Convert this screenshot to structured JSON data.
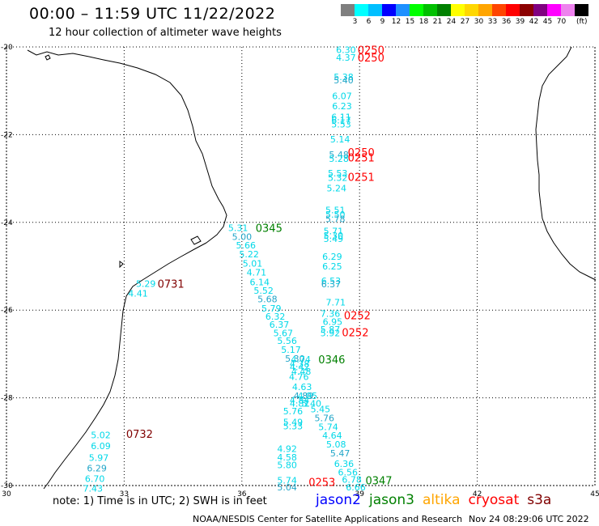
{
  "header": {
    "title": "00:00 – 11:59 UTC 11/22/2022",
    "subtitle": "12 hour collection of altimeter wave heights"
  },
  "legend": {
    "colors": [
      "#7f7f7f",
      "#00ffff",
      "#00bfff",
      "#0000ff",
      "#1e90ff",
      "#00ff00",
      "#00c000",
      "#008000",
      "#ffff00",
      "#ffd700",
      "#ffa500",
      "#ff4500",
      "#ff0000",
      "#8b0000",
      "#800080",
      "#ff00ff",
      "#ee82ee",
      "#000000"
    ],
    "labels": [
      "3",
      "6",
      "9",
      "12",
      "15",
      "18",
      "21",
      "24",
      "27",
      "30",
      "33",
      "36",
      "39",
      "42",
      "45",
      "70"
    ],
    "units": "(ft)"
  },
  "map": {
    "lon_range": [
      30,
      45
    ],
    "lat_range": [
      -30,
      -20
    ],
    "x_ticks": [
      "30",
      "33",
      "36",
      "39",
      "42",
      "45"
    ],
    "y_ticks": [
      "-20",
      "-22",
      "-24",
      "-26",
      "-28",
      "-30"
    ],
    "grid": "dotted",
    "swh_ft": [
      {
        "v": "6.30",
        "lon": 38.4,
        "lat": -20.06
      },
      {
        "v": "4.37",
        "lon": 38.4,
        "lat": -20.24
      },
      {
        "v": "5.38",
        "lon": 38.34,
        "lat": -20.68
      },
      {
        "v": "5.40",
        "lon": 38.34,
        "lat": -20.76
      },
      {
        "v": "6.07",
        "lon": 38.3,
        "lat": -21.12
      },
      {
        "v": "6.23",
        "lon": 38.3,
        "lat": -21.35
      },
      {
        "v": "6.11",
        "lon": 38.28,
        "lat": -21.6
      },
      {
        "v": "6.17",
        "lon": 38.28,
        "lat": -21.67
      },
      {
        "v": "5.53",
        "lon": 38.28,
        "lat": -21.76
      },
      {
        "v": "5.14",
        "lon": 38.25,
        "lat": -22.1
      },
      {
        "v": "5.48",
        "lon": 38.22,
        "lat": -22.45
      },
      {
        "v": "5.28",
        "lon": 38.22,
        "lat": -22.55
      },
      {
        "v": "5.53",
        "lon": 38.19,
        "lat": -22.88
      },
      {
        "v": "5.32",
        "lon": 38.19,
        "lat": -22.98
      },
      {
        "v": "5.24",
        "lon": 38.16,
        "lat": -23.22
      },
      {
        "v": "5.51",
        "lon": 38.13,
        "lat": -23.72
      },
      {
        "v": "5.50",
        "lon": 38.13,
        "lat": -23.82
      },
      {
        "v": "5.78",
        "lon": 38.13,
        "lat": -23.92
      },
      {
        "v": "5.71",
        "lon": 38.08,
        "lat": -24.2
      },
      {
        "v": "5.30",
        "lon": 38.08,
        "lat": -24.3
      },
      {
        "v": "5.49",
        "lon": 38.08,
        "lat": -24.37
      },
      {
        "v": "6.29",
        "lon": 38.05,
        "lat": -24.78
      },
      {
        "v": "6.25",
        "lon": 38.05,
        "lat": -25.0
      },
      {
        "v": "6.53",
        "lon": 38.02,
        "lat": -25.33
      },
      {
        "v": "6.37",
        "lon": 38.02,
        "lat": -25.41
      },
      {
        "v": "7.71",
        "lon": 38.14,
        "lat": -25.82
      },
      {
        "v": "7.36",
        "lon": 38.0,
        "lat": -26.08
      },
      {
        "v": "6.95",
        "lon": 38.06,
        "lat": -26.26
      },
      {
        "v": "5.87",
        "lon": 38.0,
        "lat": -26.44
      },
      {
        "v": "5.92",
        "lon": 38.0,
        "lat": -26.52
      },
      {
        "v": "5.31",
        "lon": 35.65,
        "lat": -24.12
      },
      {
        "v": "5.00",
        "lon": 35.75,
        "lat": -24.33
      },
      {
        "v": "5.66",
        "lon": 35.85,
        "lat": -24.52
      },
      {
        "v": "5.22",
        "lon": 35.93,
        "lat": -24.72
      },
      {
        "v": "5.01",
        "lon": 36.02,
        "lat": -24.94
      },
      {
        "v": "4.71",
        "lon": 36.12,
        "lat": -25.14
      },
      {
        "v": "6.14",
        "lon": 36.2,
        "lat": -25.36
      },
      {
        "v": "5.52",
        "lon": 36.3,
        "lat": -25.55
      },
      {
        "v": "5.68",
        "lon": 36.4,
        "lat": -25.75
      },
      {
        "v": "5.79",
        "lon": 36.5,
        "lat": -25.96
      },
      {
        "v": "6.32",
        "lon": 36.6,
        "lat": -26.14
      },
      {
        "v": "6.37",
        "lon": 36.7,
        "lat": -26.33
      },
      {
        "v": "5.67",
        "lon": 36.8,
        "lat": -26.52
      },
      {
        "v": "5.56",
        "lon": 36.9,
        "lat": -26.7
      },
      {
        "v": "5.17",
        "lon": 37.0,
        "lat": -26.9
      },
      {
        "v": "5.30",
        "lon": 37.1,
        "lat": -27.1
      },
      {
        "v": "4.74",
        "lon": 37.25,
        "lat": -27.12
      },
      {
        "v": "4.38",
        "lon": 37.22,
        "lat": -27.22
      },
      {
        "v": "4.42",
        "lon": 37.22,
        "lat": -27.3
      },
      {
        "v": "4.48",
        "lon": 37.26,
        "lat": -27.4
      },
      {
        "v": "4.76",
        "lon": 37.2,
        "lat": -27.52
      },
      {
        "v": "4.63",
        "lon": 37.28,
        "lat": -27.75
      },
      {
        "v": "4.89",
        "lon": 37.32,
        "lat": -27.95
      },
      {
        "v": "4.95",
        "lon": 37.42,
        "lat": -27.95
      },
      {
        "v": "4.84",
        "lon": 37.22,
        "lat": -28.05
      },
      {
        "v": "4.81",
        "lon": 37.22,
        "lat": -28.13
      },
      {
        "v": "5.40",
        "lon": 37.52,
        "lat": -28.13
      },
      {
        "v": "5.76",
        "lon": 37.05,
        "lat": -28.3
      },
      {
        "v": "5.45",
        "lon": 37.75,
        "lat": -28.26
      },
      {
        "v": "5.76",
        "lon": 37.85,
        "lat": -28.46
      },
      {
        "v": "5.49",
        "lon": 37.05,
        "lat": -28.55
      },
      {
        "v": "5.33",
        "lon": 37.05,
        "lat": -28.64
      },
      {
        "v": "5.74",
        "lon": 37.95,
        "lat": -28.66
      },
      {
        "v": "4.64",
        "lon": 38.05,
        "lat": -28.86
      },
      {
        "v": "5.08",
        "lon": 38.15,
        "lat": -29.06
      },
      {
        "v": "4.92",
        "lon": 36.9,
        "lat": -29.16
      },
      {
        "v": "5.47",
        "lon": 38.25,
        "lat": -29.26
      },
      {
        "v": "4.58",
        "lon": 36.9,
        "lat": -29.35
      },
      {
        "v": "5.80",
        "lon": 36.9,
        "lat": -29.53
      },
      {
        "v": "6.36",
        "lon": 38.35,
        "lat": -29.5
      },
      {
        "v": "6.56",
        "lon": 38.45,
        "lat": -29.7
      },
      {
        "v": "5.74",
        "lon": 36.9,
        "lat": -29.88
      },
      {
        "v": "6.78",
        "lon": 38.55,
        "lat": -29.86
      },
      {
        "v": "5.04",
        "lon": 36.9,
        "lat": -30.04
      },
      {
        "v": "6.66",
        "lon": 38.65,
        "lat": -30.04
      },
      {
        "v": "5.29",
        "lon": 33.3,
        "lat": -25.4
      },
      {
        "v": "4.41",
        "lon": 33.1,
        "lat": -25.62
      },
      {
        "v": "5.02",
        "lon": 32.15,
        "lat": -28.85
      },
      {
        "v": "6.09",
        "lon": 32.15,
        "lat": -29.1
      },
      {
        "v": "5.97",
        "lon": 32.1,
        "lat": -29.36
      },
      {
        "v": "6.29",
        "lon": 32.05,
        "lat": -29.6
      },
      {
        "v": "6.70",
        "lon": 32.0,
        "lat": -29.84
      },
      {
        "v": "7.43",
        "lon": 31.95,
        "lat": -30.06
      }
    ],
    "time_labels": [
      {
        "v": "0250",
        "lon": 38.95,
        "lat": -20.06,
        "sat": "cryosat"
      },
      {
        "v": "0250",
        "lon": 38.95,
        "lat": -20.24,
        "sat": "cryosat"
      },
      {
        "v": "0250",
        "lon": 38.7,
        "lat": -22.4,
        "sat": "cryosat"
      },
      {
        "v": "0251",
        "lon": 38.7,
        "lat": -22.52,
        "sat": "cryosat"
      },
      {
        "v": "0251",
        "lon": 38.7,
        "lat": -22.96,
        "sat": "cryosat"
      },
      {
        "v": "0345",
        "lon": 36.35,
        "lat": -24.12,
        "sat": "jason3"
      },
      {
        "v": "0731",
        "lon": 33.85,
        "lat": -25.4,
        "sat": "s3a"
      },
      {
        "v": "0252",
        "lon": 38.6,
        "lat": -26.12,
        "sat": "cryosat"
      },
      {
        "v": "0252",
        "lon": 38.55,
        "lat": -26.5,
        "sat": "cryosat"
      },
      {
        "v": "0346",
        "lon": 37.95,
        "lat": -27.12,
        "sat": "jason3"
      },
      {
        "v": "0732",
        "lon": 33.05,
        "lat": -28.82,
        "sat": "s3a"
      },
      {
        "v": "0253",
        "lon": 37.7,
        "lat": -29.92,
        "sat": "cryosat"
      },
      {
        "v": "0347",
        "lon": 39.15,
        "lat": -29.88,
        "sat": "jason3"
      }
    ]
  },
  "footer": {
    "note": "note: 1) Time is in UTC; 2) SWH is in feet",
    "satellites": [
      {
        "name": "jason2",
        "color": "#0000ff"
      },
      {
        "name": "jason3",
        "color": "#008000"
      },
      {
        "name": "altika",
        "color": "#ffa500"
      },
      {
        "name": "cryosat",
        "color": "#ff0000"
      },
      {
        "name": "s3a",
        "color": "#800000"
      }
    ],
    "credit": "NOAA/NESDIS Center for Satellite Applications and Research",
    "timestamp": "Nov 24 08:29:06 UTC 2022"
  }
}
